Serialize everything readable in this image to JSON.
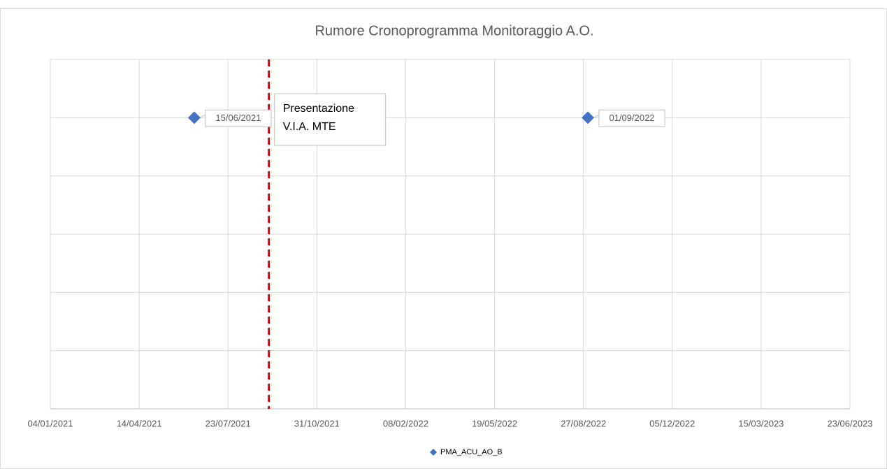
{
  "chart_data": {
    "type": "scatter",
    "title": "Rumore Cronoprogramma Monitoraggio A.O.",
    "series": [
      {
        "name": "PMA_ACU_AO_B",
        "color": "#4472c4",
        "x": [
          "2021-06-15",
          "2022-09-01"
        ],
        "values": [
          5,
          5
        ],
        "value_labels": [
          "15/06/2021",
          "01/09/2022"
        ]
      }
    ],
    "xlim": [
      "2021-01-04",
      "2023-06-23"
    ],
    "xticks": [
      {
        "value": "2021-01-04",
        "label": "04/01/2021"
      },
      {
        "value": "2021-04-14",
        "label": "14/04/2021"
      },
      {
        "value": "2021-07-23",
        "label": "23/07/2021"
      },
      {
        "value": "2021-10-31",
        "label": "31/10/2021"
      },
      {
        "value": "2022-02-08",
        "label": "08/02/2022"
      },
      {
        "value": "2022-05-19",
        "label": "19/05/2022"
      },
      {
        "value": "2022-08-27",
        "label": "27/08/2022"
      },
      {
        "value": "2022-12-05",
        "label": "05/12/2022"
      },
      {
        "value": "2023-03-15",
        "label": "15/03/2023"
      },
      {
        "value": "2023-06-23",
        "label": "23/06/2023"
      }
    ],
    "ylim": [
      0,
      6
    ],
    "yticks": [
      0,
      1,
      2,
      3,
      4,
      5,
      6
    ],
    "grid": true,
    "legend": "bottom",
    "annotation": {
      "x": "2021-09-07",
      "color": "#e00000",
      "lines": [
        "Presentazione",
        "V.I.A. MTE"
      ]
    }
  }
}
